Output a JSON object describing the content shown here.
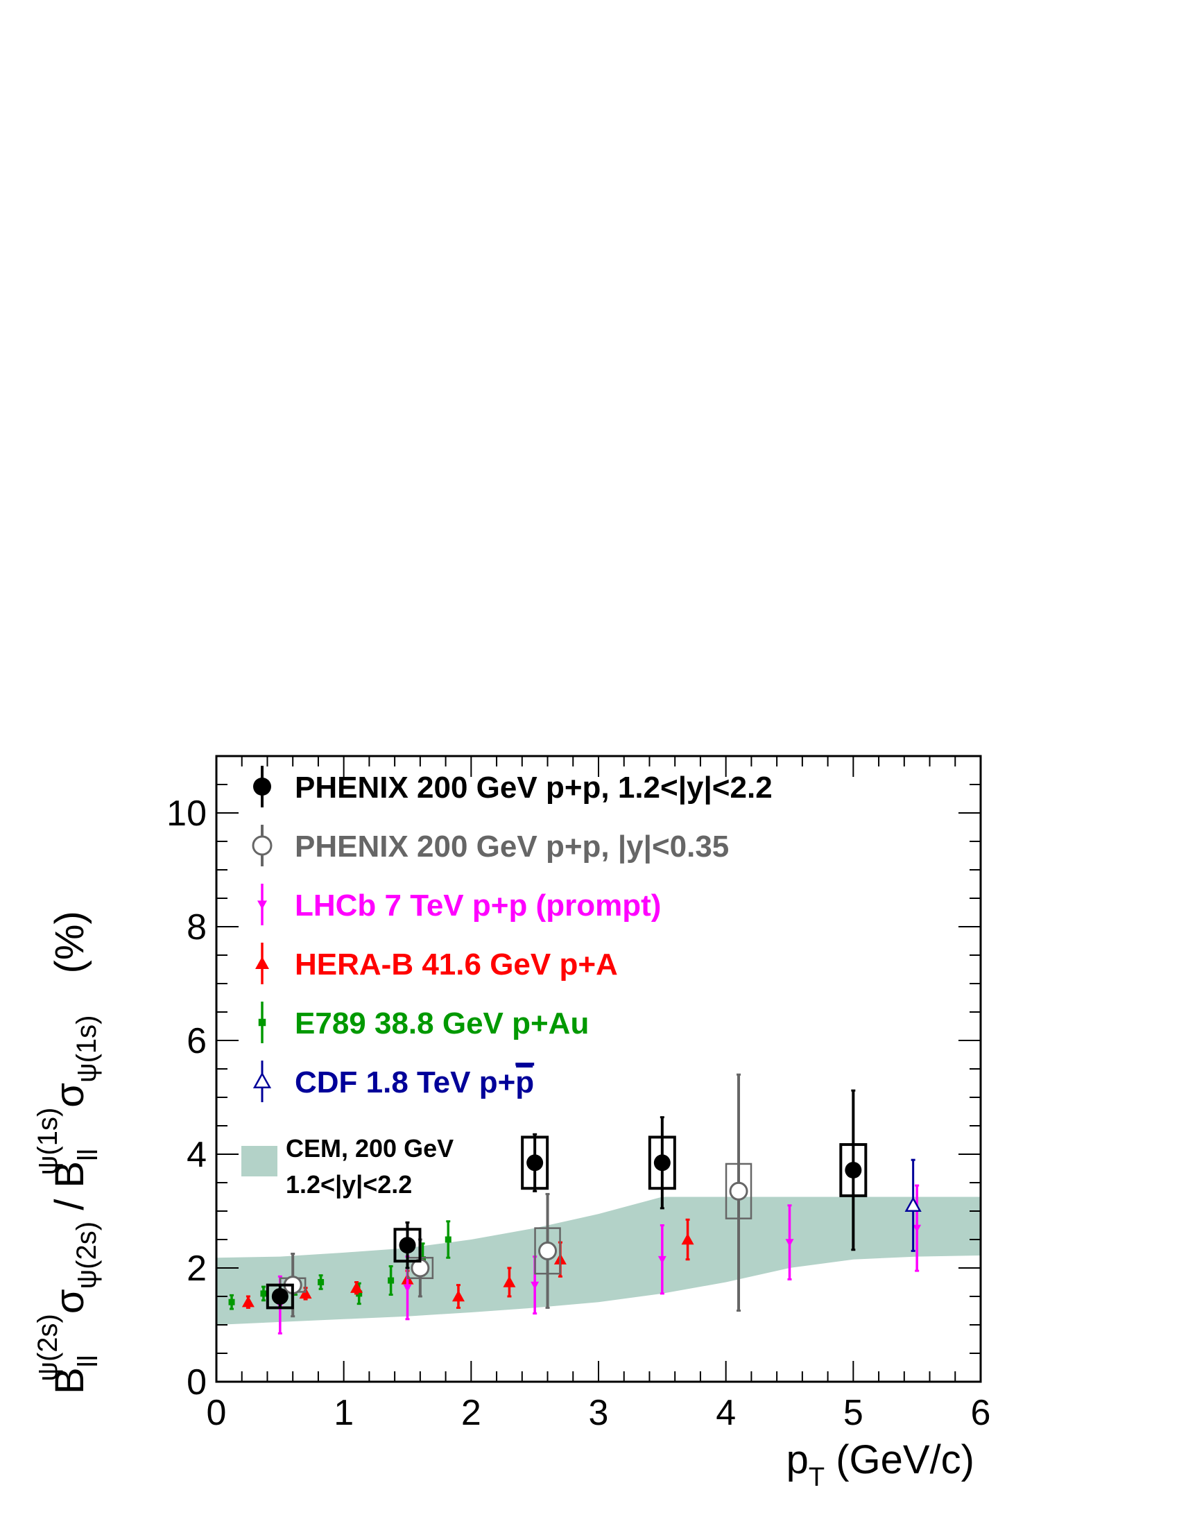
{
  "chart_data": {
    "type": "scatter",
    "xlabel": "p_T (GeV/c)",
    "xlabel_parts": {
      "main": "p",
      "sub": "T",
      "units": " (GeV/c)"
    },
    "ylabel": "B_ll^ψ(2s) σ_ψ(2s) / B_ll^ψ(1s) σ_ψ(1s)   (%)",
    "ylabel_parts": {
      "B": "B",
      "ll": "ll",
      "psi2s": "ψ(2s)",
      "sigma": "σ",
      "slash": " / ",
      "psi1s": "ψ(1s)",
      "units": "(%)"
    },
    "xlim": [
      0,
      6
    ],
    "ylim": [
      0,
      11
    ],
    "x_ticks": [
      "0",
      "1",
      "2",
      "3",
      "4",
      "5",
      "6"
    ],
    "y_ticks": [
      "0",
      "2",
      "4",
      "6",
      "8",
      "10"
    ],
    "grid": false,
    "legend_position": "top-left",
    "series": [
      {
        "name": "PHENIX 200 GeV p+p, 1.2<|y|<2.2",
        "color": "#000000",
        "marker": "filled-circle",
        "points": [
          {
            "x": 0.5,
            "y": 1.5,
            "err_low": 0.2,
            "err_high": 0.2,
            "sys": 0.2
          },
          {
            "x": 1.5,
            "y": 2.4,
            "err_low": 0.4,
            "err_high": 0.4,
            "sys": 0.28
          },
          {
            "x": 2.5,
            "y": 3.85,
            "err_low": 0.5,
            "err_high": 0.5,
            "sys": 0.45
          },
          {
            "x": 3.5,
            "y": 3.85,
            "err_low": 0.8,
            "err_high": 0.8,
            "sys": 0.45
          },
          {
            "x": 5.0,
            "y": 3.72,
            "err_low": 1.4,
            "err_high": 1.4,
            "sys": 0.45
          }
        ]
      },
      {
        "name": "PHENIX 200 GeV p+p, |y|<0.35",
        "color": "#666666",
        "marker": "open-circle",
        "points": [
          {
            "x": 0.6,
            "y": 1.7,
            "err_low": 0.55,
            "err_high": 0.55,
            "sys": 0.12
          },
          {
            "x": 1.6,
            "y": 2.0,
            "err_low": 0.5,
            "err_high": 0.5,
            "sys": 0.18
          },
          {
            "x": 2.6,
            "y": 2.3,
            "err_low": 1.0,
            "err_high": 1.0,
            "sys": 0.4
          },
          {
            "x": 4.1,
            "y": 3.35,
            "err_low": 2.1,
            "err_high": 2.05,
            "sys": 0.48
          }
        ]
      },
      {
        "name": "LHCb 7 TeV p+p (prompt)",
        "color": "#ff00ff",
        "marker": "down-triangle",
        "points": [
          {
            "x": 0.5,
            "y": 1.35,
            "err_low": 0.5,
            "err_high": 0.5
          },
          {
            "x": 1.5,
            "y": 1.65,
            "err_low": 0.55,
            "err_high": 0.55
          },
          {
            "x": 2.5,
            "y": 1.7,
            "err_low": 0.5,
            "err_high": 0.5
          },
          {
            "x": 3.5,
            "y": 2.15,
            "err_low": 0.6,
            "err_high": 0.6
          },
          {
            "x": 4.5,
            "y": 2.45,
            "err_low": 0.65,
            "err_high": 0.65
          },
          {
            "x": 5.5,
            "y": 2.7,
            "err_low": 0.75,
            "err_high": 0.75
          }
        ]
      },
      {
        "name": "HERA-B 41.6 GeV p+A",
        "color": "#ff0000",
        "marker": "up-triangle",
        "points": [
          {
            "x": 0.25,
            "y": 1.4,
            "err_low": 0.1,
            "err_high": 0.1
          },
          {
            "x": 0.7,
            "y": 1.55,
            "err_low": 0.1,
            "err_high": 0.1
          },
          {
            "x": 1.1,
            "y": 1.65,
            "err_low": 0.1,
            "err_high": 0.1
          },
          {
            "x": 1.5,
            "y": 1.8,
            "err_low": 0.15,
            "err_high": 0.15
          },
          {
            "x": 1.9,
            "y": 1.5,
            "err_low": 0.2,
            "err_high": 0.2
          },
          {
            "x": 2.3,
            "y": 1.75,
            "err_low": 0.25,
            "err_high": 0.25
          },
          {
            "x": 2.7,
            "y": 2.15,
            "err_low": 0.3,
            "err_high": 0.3
          },
          {
            "x": 3.7,
            "y": 2.5,
            "err_low": 0.35,
            "err_high": 0.35
          }
        ]
      },
      {
        "name": "E789 38.8 GeV p+Au",
        "color": "#009900",
        "marker": "filled-square",
        "points": [
          {
            "x": 0.12,
            "y": 1.4,
            "err_low": 0.12,
            "err_high": 0.12
          },
          {
            "x": 0.37,
            "y": 1.55,
            "err_low": 0.12,
            "err_high": 0.12
          },
          {
            "x": 0.62,
            "y": 1.65,
            "err_low": 0.12,
            "err_high": 0.12
          },
          {
            "x": 0.82,
            "y": 1.75,
            "err_low": 0.12,
            "err_high": 0.12
          },
          {
            "x": 1.12,
            "y": 1.55,
            "err_low": 0.18,
            "err_high": 0.18
          },
          {
            "x": 1.37,
            "y": 1.78,
            "err_low": 0.25,
            "err_high": 0.25
          },
          {
            "x": 1.62,
            "y": 2.15,
            "err_low": 0.28,
            "err_high": 0.28
          },
          {
            "x": 1.82,
            "y": 2.5,
            "err_low": 0.32,
            "err_high": 0.32
          }
        ]
      },
      {
        "name": "CDF 1.8 TeV p+p̄",
        "color": "#000099",
        "marker": "open-up-triangle",
        "points": [
          {
            "x": 5.47,
            "y": 3.1,
            "err_low": 0.8,
            "err_high": 0.8
          }
        ]
      }
    ],
    "band": {
      "name": "CEM, 200 GeV",
      "name_line2": "1.2<|y|<2.2",
      "color": "#b3d2c8",
      "x": [
        0.0,
        0.5,
        1.0,
        1.5,
        2.0,
        2.5,
        3.0,
        3.5,
        4.0,
        4.5,
        5.0,
        5.5,
        6.0
      ],
      "low": [
        1.0,
        1.05,
        1.1,
        1.15,
        1.22,
        1.3,
        1.4,
        1.55,
        1.75,
        2.0,
        2.15,
        2.2,
        2.22
      ],
      "high": [
        2.18,
        2.2,
        2.27,
        2.35,
        2.5,
        2.7,
        2.95,
        3.25,
        3.25,
        3.25,
        3.25,
        3.25,
        3.25
      ]
    },
    "legend_cdf_parts": {
      "main": "CDF 1.8 TeV p+",
      "pbar": "p"
    }
  }
}
